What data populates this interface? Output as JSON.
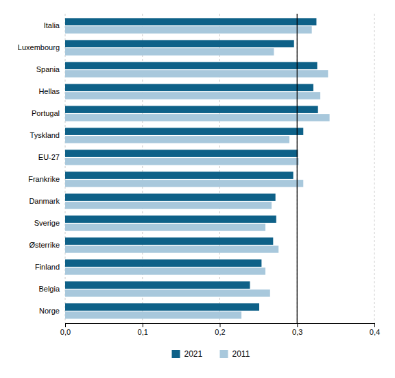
{
  "chart_data": {
    "type": "bar",
    "orientation": "horizontal",
    "categories": [
      "Italia",
      "Luxembourg",
      "Spania",
      "Hellas",
      "Portugal",
      "Tyskland",
      "EU-27",
      "Frankrike",
      "Danmark",
      "Sverige",
      "Østerrike",
      "Finland",
      "Belgia",
      "Norge"
    ],
    "series": [
      {
        "name": "2021",
        "color": "#0e6188",
        "values": [
          0.325,
          0.296,
          0.326,
          0.321,
          0.327,
          0.308,
          0.301,
          0.295,
          0.272,
          0.273,
          0.269,
          0.254,
          0.239,
          0.251
        ]
      },
      {
        "name": "2011",
        "color": "#a8c8dc",
        "values": [
          0.319,
          0.27,
          0.34,
          0.33,
          0.342,
          0.29,
          0.302,
          0.308,
          0.267,
          0.259,
          0.276,
          0.259,
          0.265,
          0.228
        ]
      }
    ],
    "xlim": [
      0.0,
      0.4
    ],
    "xticks": [
      {
        "value": 0.0,
        "label": "0,0"
      },
      {
        "value": 0.1,
        "label": "0,1"
      },
      {
        "value": 0.2,
        "label": "0,2"
      },
      {
        "value": 0.3,
        "label": "0,3"
      },
      {
        "value": 0.4,
        "label": "0,4"
      }
    ],
    "reference_line": 0.3,
    "grid": true,
    "legend": "bottom"
  }
}
